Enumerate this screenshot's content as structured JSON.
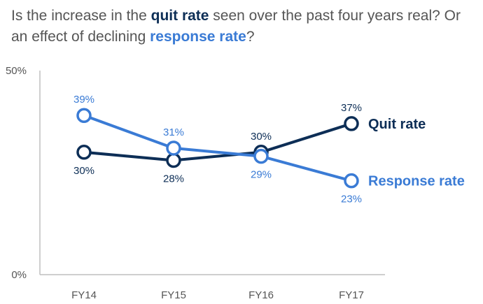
{
  "title": {
    "part1": "Is the increase in the ",
    "quit": "quit rate",
    "part2": " seen over the past four years real? Or an effect of declining ",
    "response": "response rate",
    "part3": "?"
  },
  "colors": {
    "quit": "#0d2e56",
    "response": "#3a7bd5",
    "axis": "#bfbfbf"
  },
  "chart_data": {
    "type": "line",
    "categories": [
      "FY14",
      "FY15",
      "FY16",
      "FY17"
    ],
    "ylim": [
      0,
      50
    ],
    "y_tick_labels": [
      "50%",
      "0%"
    ],
    "grid": false,
    "legend": "direct labels at line ends (right)",
    "series": [
      {
        "name": "Quit rate",
        "values": [
          30,
          28,
          30,
          37
        ],
        "labels": [
          "30%",
          "28%",
          "30%",
          "37%"
        ]
      },
      {
        "name": "Response rate",
        "values": [
          39,
          31,
          29,
          23
        ],
        "labels": [
          "39%",
          "31%",
          "29%",
          "23%"
        ]
      }
    ]
  }
}
